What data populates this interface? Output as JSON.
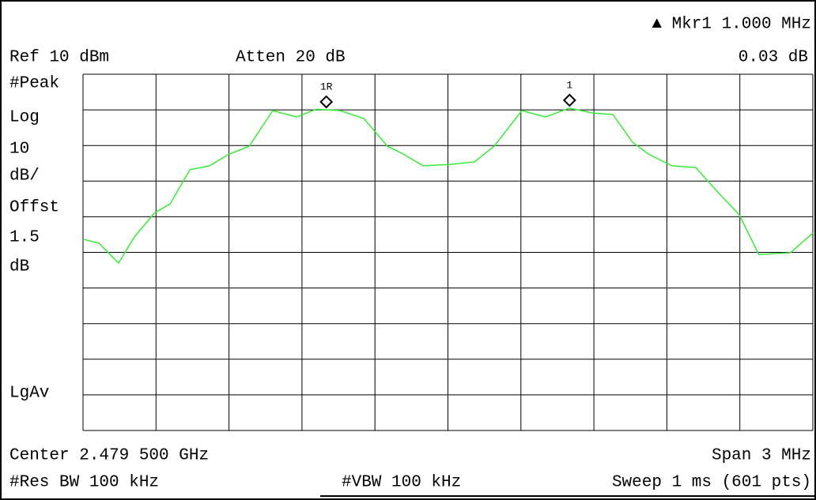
{
  "chart_data": {
    "type": "line",
    "header": {
      "marker_readout": "▲ Mkr1  1.000 MHz",
      "ref_level": "Ref 10 dBm",
      "attenuation": "Atten 20 dB",
      "marker_value": "0.03 dB"
    },
    "left_labels": [
      "#Peak",
      "Log",
      "10",
      "dB/",
      "Offst",
      "1.5",
      "dB",
      "LgAv"
    ],
    "footer": {
      "center": "Center 2.479 500 GHz",
      "span": "Span 3 MHz",
      "rbw": "#Res BW 100 kHz",
      "vbw": "#VBW 100 kHz",
      "sweep": "Sweep 1 ms (601 pts)"
    },
    "xlim": [
      2478,
      2481
    ],
    "ylim": [
      -90,
      10
    ],
    "color": "#33ee33",
    "x": [
      2478.0,
      2478.065,
      2478.146,
      2478.211,
      2478.293,
      2478.358,
      2478.439,
      2478.52,
      2478.601,
      2478.683,
      2478.78,
      2478.878,
      2478.959,
      2479.056,
      2479.154,
      2479.251,
      2479.316,
      2479.398,
      2479.511,
      2479.609,
      2479.69,
      2479.804,
      2479.901,
      2479.999,
      2480.096,
      2480.178,
      2480.259,
      2480.324,
      2480.421,
      2480.519,
      2480.6,
      2480.698,
      2480.778,
      2480.908,
      2481.0
    ],
    "values": [
      -36.3,
      -37.4,
      -43.0,
      -35.7,
      -29.0,
      -26.4,
      -16.8,
      -15.7,
      -12.4,
      -10.2,
      -0.2,
      -2.0,
      0.2,
      -0.2,
      -2.4,
      -10.2,
      -12.4,
      -15.7,
      -15.3,
      -14.6,
      -10.2,
      -0.2,
      -2.0,
      0.5,
      -0.9,
      -1.3,
      -9.1,
      -12.4,
      -15.7,
      -16.2,
      -22.4,
      -29.5,
      -40.6,
      -40.1,
      -34.6
    ],
    "markers": [
      {
        "label": "1R",
        "x": 2479.0
      },
      {
        "label": "1",
        "x": 2480.0
      }
    ]
  }
}
